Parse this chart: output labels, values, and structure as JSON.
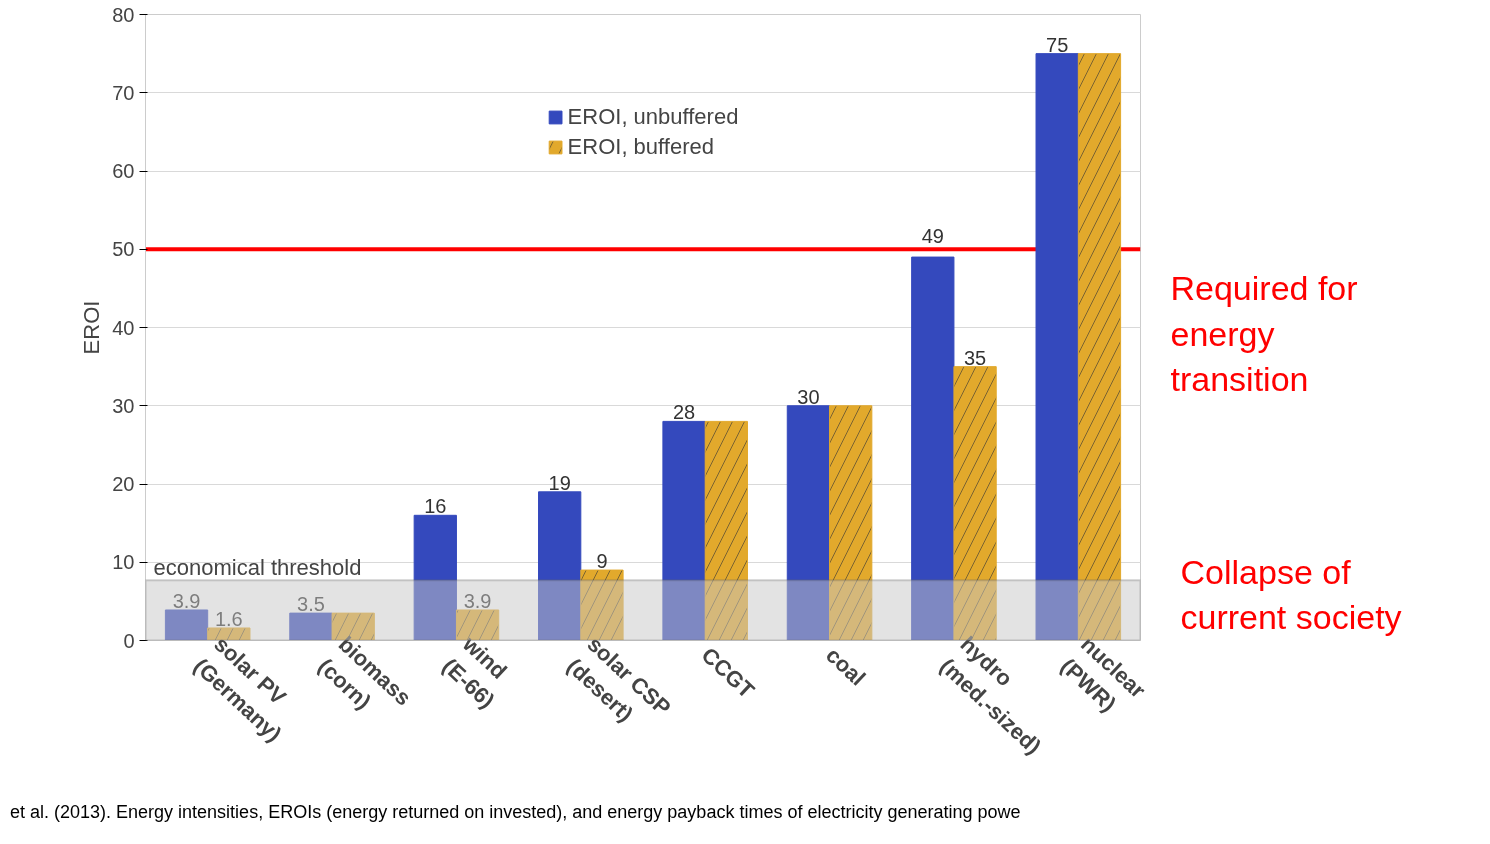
{
  "chart_data": {
    "type": "bar",
    "ylabel": "EROI",
    "categories": [
      "solar PV (Germany)",
      "biomass (corn)",
      "wind (E-66)",
      "solar CSP (desert)",
      "CCGT",
      "coal",
      "hydro (med.-sized)",
      "nuclear (PWR)"
    ],
    "series": [
      {
        "name": "EROI, unbuffered",
        "color": "#3449bd",
        "values": [
          3.9,
          3.5,
          16,
          19,
          28,
          30,
          49,
          75
        ],
        "value_labels": [
          "3.9",
          "3.5",
          "16",
          "19",
          "28",
          "30",
          "49",
          "75"
        ]
      },
      {
        "name": "EROI, buffered",
        "color": "#e2a92c",
        "values": [
          1.6,
          3.5,
          3.9,
          9,
          28,
          30,
          35,
          75
        ],
        "value_labels": [
          "1.6",
          null,
          "3.9",
          "9",
          null,
          null,
          "35",
          null
        ]
      }
    ],
    "ylim": [
      0,
      80
    ],
    "yticks": [
      0,
      10,
      20,
      30,
      40,
      50,
      60,
      70,
      80
    ],
    "grid": "y",
    "legend": "top",
    "ref_lines": [
      {
        "axis": "y",
        "value": 50,
        "label": "Required for energy transition",
        "color": "#ff0000"
      }
    ],
    "bands": [
      {
        "axis": "y",
        "from": 0,
        "to": 7.7,
        "label": "economical threshold",
        "color": "#c8c8c8"
      }
    ],
    "annotations": [
      "Collapse of current society",
      "et al. (2013). Energy intensities, EROIs (energy returned on invested), and energy payback times of electricity generating powe"
    ]
  }
}
